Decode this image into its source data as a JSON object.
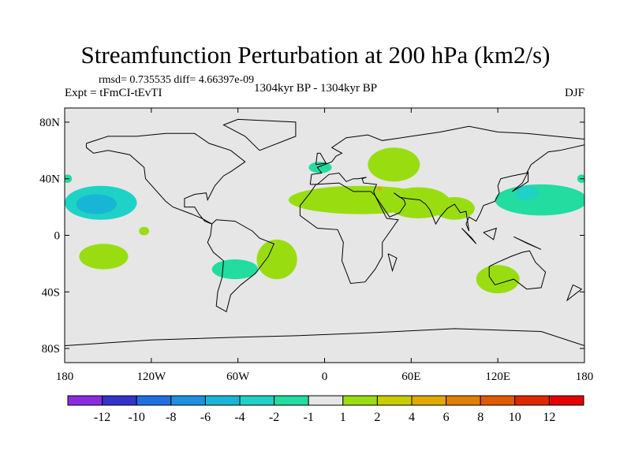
{
  "header": {
    "title": "Streamfunction Perturbation at 200 hPa (km2/s)",
    "stats": "rmsd= 0.735535 diff= 4.66397e-09",
    "expt": "Expt = tFmCI-tEvTI",
    "period": "1304kyr BP - 1304kyr BP",
    "season": "DJF"
  },
  "chart_data": {
    "type": "heatmap",
    "title": "Streamfunction Perturbation at 200 hPa (km2/s)",
    "projection": "cylindrical equidistant",
    "xlim": [
      -180,
      180
    ],
    "ylim": [
      -90,
      90
    ],
    "x_ticks": [
      {
        "value": -180,
        "label": "180"
      },
      {
        "value": -120,
        "label": "120W"
      },
      {
        "value": -60,
        "label": "60W"
      },
      {
        "value": 0,
        "label": "0"
      },
      {
        "value": 60,
        "label": "60E"
      },
      {
        "value": 120,
        "label": "120E"
      },
      {
        "value": 180,
        "label": "180"
      }
    ],
    "y_ticks": [
      {
        "value": 80,
        "label": "80N"
      },
      {
        "value": 40,
        "label": "40N"
      },
      {
        "value": 0,
        "label": "0"
      },
      {
        "value": -40,
        "label": "40S"
      },
      {
        "value": -80,
        "label": "80S"
      }
    ],
    "colorbar": {
      "boundaries": [
        "-12",
        "-10",
        "-8",
        "-6",
        "-4",
        "-2",
        "-1",
        "1",
        "2",
        "4",
        "6",
        "8",
        "10",
        "12"
      ],
      "colors": [
        "#8a2be2",
        "#3333cc",
        "#1e6fe0",
        "#1e90e0",
        "#17b6d6",
        "#1ed2c6",
        "#22dca0",
        "#e6e6e6",
        "#99dd11",
        "#c8cc00",
        "#e0a800",
        "#e07f00",
        "#e05a00",
        "#e02800",
        "#e60000"
      ]
    },
    "regions": [
      {
        "name": "north-pacific-low",
        "lon": -155,
        "lat": 23,
        "rlon": 25,
        "rlat": 12,
        "value": -3
      },
      {
        "name": "north-pacific-low-core",
        "lon": -158,
        "lat": 22,
        "rlon": 14,
        "rlat": 7,
        "value": -5
      },
      {
        "name": "hawaii-small-high",
        "lon": -125,
        "lat": 3,
        "rlon": 3.5,
        "rlat": 3,
        "value": 1.5
      },
      {
        "name": "south-pacific-high",
        "lon": -153,
        "lat": -15,
        "rlon": 17,
        "rlat": 9,
        "value": 1.5
      },
      {
        "name": "dateline-west-low",
        "lon": -178,
        "lat": 40,
        "rlon": 3,
        "rlat": 3,
        "value": -1.5
      },
      {
        "name": "south-america-low",
        "lon": -62,
        "lat": -24,
        "rlon": 16,
        "rlat": 7,
        "value": -1.5
      },
      {
        "name": "south-atlantic-high",
        "lon": -33,
        "lat": -17,
        "rlon": 14,
        "rlat": 14,
        "value": 1.5
      },
      {
        "name": "north-atlantic-low",
        "lon": -3,
        "lat": 48,
        "rlon": 8,
        "rlat": 4,
        "value": -1.5
      },
      {
        "name": "europe-high",
        "lon": 48,
        "lat": 50,
        "rlon": 18,
        "rlat": 12,
        "value": 1.5
      },
      {
        "name": "africa-asia-high",
        "lon": 25,
        "lat": 25,
        "rlon": 50,
        "rlat": 10,
        "value": 1.5
      },
      {
        "name": "south-asia-high",
        "lon": 65,
        "lat": 23,
        "rlon": 22,
        "rlat": 11,
        "value": 1.5
      },
      {
        "name": "india-high",
        "lon": 90,
        "lat": 19,
        "rlon": 14,
        "rlat": 8,
        "value": 1.5
      },
      {
        "name": "middle-east-peak",
        "lon": 38,
        "lat": 33,
        "rlon": 1.5,
        "rlat": 1.5,
        "value": 4.5
      },
      {
        "name": "west-pacific-low",
        "lon": 150,
        "lat": 25,
        "rlon": 32,
        "rlat": 11,
        "value": -1.5
      },
      {
        "name": "west-pacific-low-core",
        "lon": 140,
        "lat": 30,
        "rlon": 8,
        "rlat": 5,
        "value": -2.5
      },
      {
        "name": "australia-high",
        "lon": 120,
        "lat": -31,
        "rlon": 15,
        "rlat": 10,
        "value": 1.5
      },
      {
        "name": "dateline-east-low",
        "lon": 178,
        "lat": 40,
        "rlon": 3,
        "rlat": 3,
        "value": -1.5
      }
    ]
  }
}
